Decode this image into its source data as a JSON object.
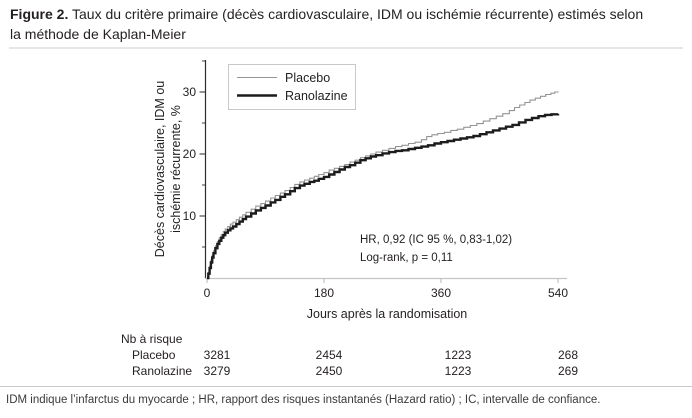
{
  "caption": {
    "label": "Figure 2.",
    "text": " Taux du critère primaire (décès cardiovasculaire, IDM ou ischémie récurrente) estimés selon la méthode de Kaplan-Meier"
  },
  "footnote": "IDM indique l’infarctus du myocarde ; HR, rapport des risques instantanés (Hazard ratio) ; IC, intervalle de confiance.",
  "colors": {
    "placebo_line": "#949494",
    "ranolazine_line": "#1c1c1c",
    "axis_y": "#2b2b2b",
    "axis_x": "#c4c4c4",
    "divider": "#c9c9c9",
    "legend_border": "#c9c9c9"
  },
  "chart_data": {
    "type": "line",
    "subtype": "kaplan-meier-step",
    "xlabel": "Jours après la randomisation",
    "ylabel": "Décès cardiovasculaire, IDM ou ischémie récurrente, %",
    "ylabel_lines": [
      "Décès cardiovasculaire, IDM ou",
      "ischémie récurrente, %"
    ],
    "xlim": [
      0,
      540
    ],
    "ylim": [
      0,
      35
    ],
    "x_ticks": [
      0,
      180,
      360,
      540
    ],
    "x_tick_labels": [
      "0",
      "180",
      "360",
      "540"
    ],
    "y_ticks": [
      10,
      20,
      30
    ],
    "y_tick_labels": [
      "10",
      "20",
      "30"
    ],
    "y_minor_ticks": [
      5,
      15,
      25,
      35
    ],
    "grid": false,
    "legend": {
      "position": "top-left",
      "entries": [
        {
          "label": "Placebo"
        },
        {
          "label": "Ranolazine"
        }
      ]
    },
    "annotation": {
      "line1": "HR, 0,92 (IC 95 %, 0,83-1,02)",
      "line2": "Log-rank, p = 0,11"
    },
    "series": [
      {
        "name": "Placebo",
        "color": "#949494",
        "stroke_width": 1.1,
        "points": [
          [
            0,
            0
          ],
          [
            2,
            0.9
          ],
          [
            4,
            1.9
          ],
          [
            6,
            2.9
          ],
          [
            8,
            3.7
          ],
          [
            10,
            4.4
          ],
          [
            13,
            5.2
          ],
          [
            16,
            5.9
          ],
          [
            19,
            6.5
          ],
          [
            22,
            7.0
          ],
          [
            25,
            7.5
          ],
          [
            28,
            7.9
          ],
          [
            32,
            8.3
          ],
          [
            36,
            8.7
          ],
          [
            40,
            9.0
          ],
          [
            45,
            9.4
          ],
          [
            50,
            9.8
          ],
          [
            55,
            10.2
          ],
          [
            60,
            10.6
          ],
          [
            68,
            11.1
          ],
          [
            75,
            11.6
          ],
          [
            83,
            12.0
          ],
          [
            90,
            12.4
          ],
          [
            98,
            12.9
          ],
          [
            105,
            13.3
          ],
          [
            113,
            13.7
          ],
          [
            120,
            14.1
          ],
          [
            128,
            14.6
          ],
          [
            135,
            15.1
          ],
          [
            143,
            15.5
          ],
          [
            150,
            15.8
          ],
          [
            158,
            16.1
          ],
          [
            165,
            16.4
          ],
          [
            172,
            16.7
          ],
          [
            180,
            17.0
          ],
          [
            188,
            17.4
          ],
          [
            196,
            17.7
          ],
          [
            204,
            18.0
          ],
          [
            212,
            18.3
          ],
          [
            220,
            18.7
          ],
          [
            228,
            19.0
          ],
          [
            236,
            19.4
          ],
          [
            244,
            19.7
          ],
          [
            252,
            20.0
          ],
          [
            260,
            20.3
          ],
          [
            270,
            20.6
          ],
          [
            280,
            20.9
          ],
          [
            290,
            21.2
          ],
          [
            300,
            21.4
          ],
          [
            310,
            21.7
          ],
          [
            320,
            21.9
          ],
          [
            330,
            22.3
          ],
          [
            338,
            22.8
          ],
          [
            346,
            23.1
          ],
          [
            355,
            23.3
          ],
          [
            365,
            23.5
          ],
          [
            375,
            23.8
          ],
          [
            385,
            24.0
          ],
          [
            395,
            24.3
          ],
          [
            405,
            24.6
          ],
          [
            415,
            24.9
          ],
          [
            425,
            25.3
          ],
          [
            435,
            25.7
          ],
          [
            445,
            26.1
          ],
          [
            455,
            26.5
          ],
          [
            465,
            27.0
          ],
          [
            473,
            27.5
          ],
          [
            481,
            27.9
          ],
          [
            489,
            28.3
          ],
          [
            497,
            28.7
          ],
          [
            505,
            29.0
          ],
          [
            513,
            29.3
          ],
          [
            521,
            29.6
          ],
          [
            529,
            29.8
          ],
          [
            535,
            30.0
          ],
          [
            540,
            30.1
          ]
        ]
      },
      {
        "name": "Ranolazine",
        "color": "#1c1c1c",
        "stroke_width": 2.4,
        "points": [
          [
            0,
            0
          ],
          [
            2,
            0.7
          ],
          [
            4,
            1.6
          ],
          [
            6,
            2.5
          ],
          [
            8,
            3.3
          ],
          [
            10,
            4.0
          ],
          [
            13,
            4.8
          ],
          [
            16,
            5.5
          ],
          [
            19,
            6.0
          ],
          [
            22,
            6.5
          ],
          [
            25,
            6.9
          ],
          [
            28,
            7.3
          ],
          [
            32,
            7.7
          ],
          [
            36,
            8.0
          ],
          [
            40,
            8.3
          ],
          [
            45,
            8.7
          ],
          [
            50,
            9.1
          ],
          [
            55,
            9.5
          ],
          [
            60,
            9.9
          ],
          [
            68,
            10.4
          ],
          [
            75,
            10.9
          ],
          [
            83,
            11.3
          ],
          [
            90,
            11.7
          ],
          [
            98,
            12.2
          ],
          [
            105,
            12.6
          ],
          [
            113,
            13.1
          ],
          [
            120,
            13.5
          ],
          [
            128,
            14.0
          ],
          [
            135,
            14.5
          ],
          [
            143,
            14.9
          ],
          [
            150,
            15.2
          ],
          [
            158,
            15.5
          ],
          [
            165,
            15.7
          ],
          [
            172,
            16.0
          ],
          [
            180,
            16.3
          ],
          [
            188,
            16.7
          ],
          [
            196,
            17.1
          ],
          [
            204,
            17.5
          ],
          [
            212,
            17.9
          ],
          [
            220,
            18.2
          ],
          [
            228,
            18.6
          ],
          [
            236,
            19.0
          ],
          [
            244,
            19.3
          ],
          [
            252,
            19.6
          ],
          [
            260,
            19.8
          ],
          [
            270,
            20.1
          ],
          [
            280,
            20.3
          ],
          [
            290,
            20.5
          ],
          [
            300,
            20.6
          ],
          [
            310,
            20.8
          ],
          [
            320,
            21.0
          ],
          [
            330,
            21.2
          ],
          [
            340,
            21.4
          ],
          [
            350,
            21.7
          ],
          [
            360,
            21.9
          ],
          [
            370,
            22.1
          ],
          [
            380,
            22.3
          ],
          [
            390,
            22.5
          ],
          [
            400,
            22.7
          ],
          [
            410,
            22.9
          ],
          [
            420,
            23.2
          ],
          [
            430,
            23.5
          ],
          [
            440,
            23.8
          ],
          [
            450,
            24.1
          ],
          [
            460,
            24.4
          ],
          [
            470,
            24.7
          ],
          [
            480,
            25.1
          ],
          [
            490,
            25.5
          ],
          [
            500,
            25.8
          ],
          [
            510,
            26.1
          ],
          [
            520,
            26.3
          ],
          [
            530,
            26.4
          ],
          [
            540,
            26.5
          ]
        ]
      }
    ],
    "risk_table": {
      "header": "Nb à risque",
      "columns_days": [
        0,
        180,
        360,
        540
      ],
      "rows": [
        {
          "label": "Placebo",
          "values": [
            "3281",
            "2454",
            "1223",
            "268"
          ]
        },
        {
          "label": "Ranolazine",
          "values": [
            "3279",
            "2450",
            "1223",
            "269"
          ]
        }
      ]
    }
  }
}
